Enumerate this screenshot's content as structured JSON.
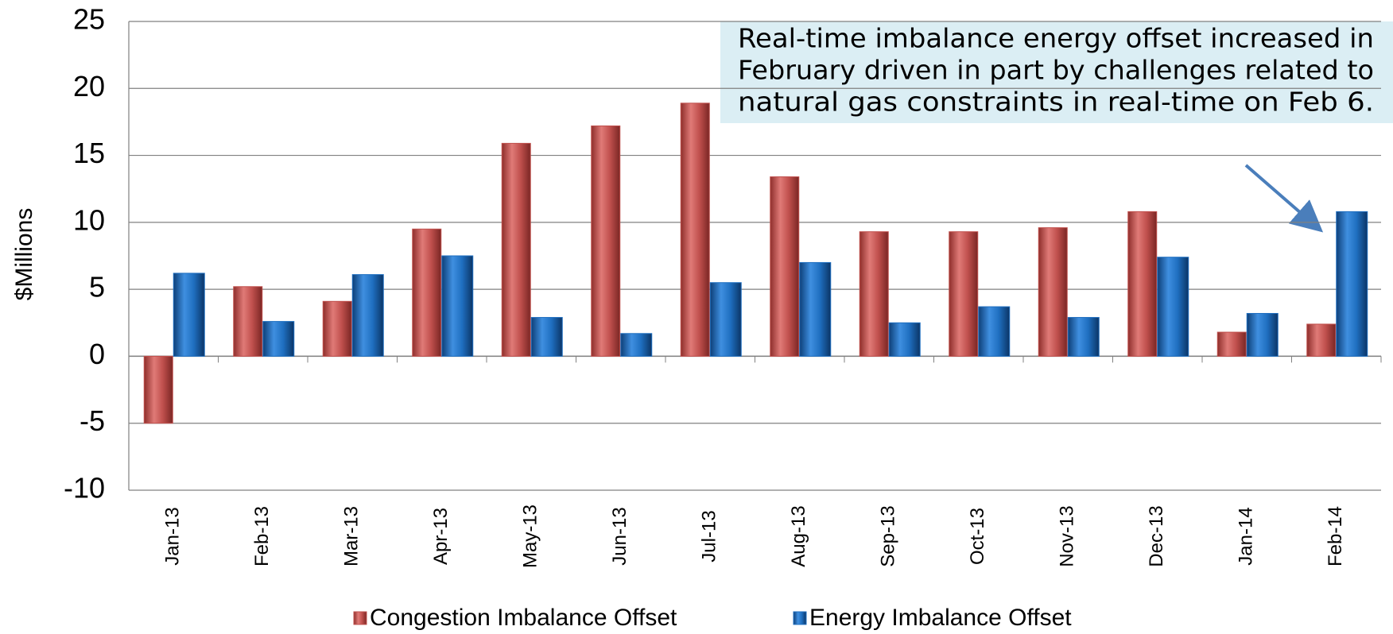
{
  "chart_data": {
    "type": "bar",
    "y_label": "$Millions",
    "categories": [
      "Jan-13",
      "Feb-13",
      "Mar-13",
      "Apr-13",
      "May-13",
      "Jun-13",
      "Jul-13",
      "Aug-13",
      "Sep-13",
      "Oct-13",
      "Nov-13",
      "Dec-13",
      "Jan-14",
      "Feb-14"
    ],
    "series": [
      {
        "name": "Congestion Imbalance Offset",
        "color": "#c0504d",
        "values": [
          -5,
          5.2,
          4.1,
          9.5,
          15.9,
          17.2,
          18.9,
          13.4,
          9.3,
          9.3,
          9.6,
          10.8,
          1.8,
          2.4
        ]
      },
      {
        "name": "Energy Imbalance Offset",
        "color": "#1f6fc0",
        "values": [
          6.2,
          2.6,
          6.1,
          7.5,
          2.9,
          1.7,
          5.5,
          7.0,
          2.5,
          3.7,
          2.9,
          7.4,
          3.2,
          10.8
        ]
      }
    ],
    "ylim": [
      -10,
      25
    ],
    "yticks": [
      -10,
      -5,
      0,
      5,
      10,
      15,
      20,
      25
    ],
    "grid": true,
    "annotation": [
      "Real-time imbalance energy offset increased in",
      "February driven in part by challenges related to",
      "natural gas constraints in real-time on Feb 6."
    ]
  }
}
